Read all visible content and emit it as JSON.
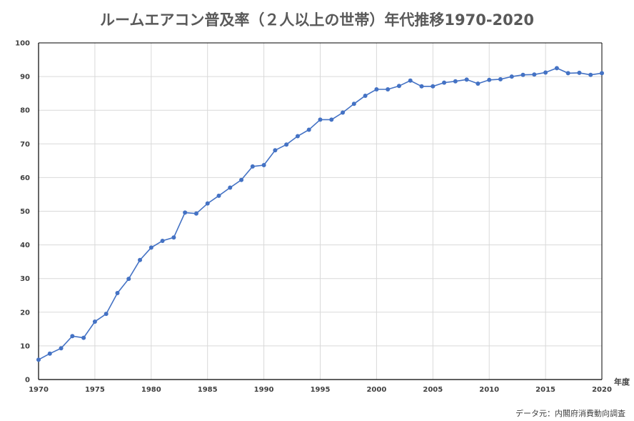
{
  "chart_data": {
    "type": "line",
    "title": "ルームエアコン普及率（２人以上の世帯）年代推移1970-2020",
    "xlabel": "年度",
    "ylabel": "",
    "xlim": [
      1970,
      2020
    ],
    "ylim": [
      0,
      100
    ],
    "x_ticks": [
      "1970",
      "1975",
      "1980",
      "1985",
      "1990",
      "1995",
      "2000",
      "2005",
      "2010",
      "2015",
      "2020"
    ],
    "y_ticks": [
      "0",
      "10",
      "20",
      "30",
      "40",
      "50",
      "60",
      "70",
      "80",
      "90",
      "100"
    ],
    "grid": true,
    "legend": "none",
    "series_color": "#4472C4",
    "x": [
      1970,
      1971,
      1972,
      1973,
      1974,
      1975,
      1976,
      1977,
      1978,
      1979,
      1980,
      1981,
      1982,
      1983,
      1984,
      1985,
      1986,
      1987,
      1988,
      1989,
      1990,
      1991,
      1992,
      1993,
      1994,
      1995,
      1996,
      1997,
      1998,
      1999,
      2000,
      2001,
      2002,
      2003,
      2004,
      2005,
      2006,
      2007,
      2008,
      2009,
      2010,
      2011,
      2012,
      2013,
      2014,
      2015,
      2016,
      2017,
      2018,
      2019,
      2020
    ],
    "series": [
      {
        "values": [
          5.9,
          7.7,
          9.3,
          12.9,
          12.4,
          17.2,
          19.5,
          25.7,
          29.9,
          35.5,
          39.2,
          41.2,
          42.2,
          49.6,
          49.3,
          52.3,
          54.6,
          57.0,
          59.3,
          63.3,
          63.7,
          68.1,
          69.8,
          72.3,
          74.2,
          77.2,
          77.2,
          79.3,
          81.9,
          84.3,
          86.2,
          86.2,
          87.2,
          88.8,
          87.1,
          87.1,
          88.2,
          88.6,
          89.1,
          87.9,
          89.0,
          89.2,
          90.0,
          90.5,
          90.6,
          91.2,
          92.5,
          91.0,
          91.1,
          90.5,
          91.0
        ]
      }
    ],
    "source_note": "データ元：内閣府消費動向調査"
  }
}
